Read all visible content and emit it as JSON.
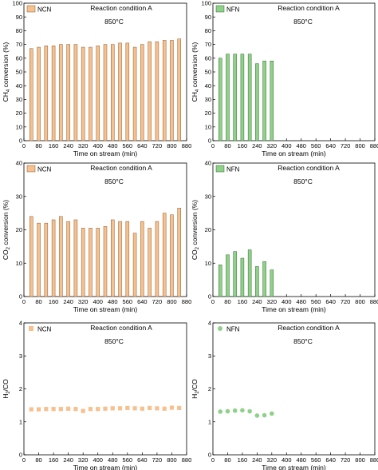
{
  "colors": {
    "ncn_fill": "#f6c08f",
    "ncn_stroke": "#8a5a2b",
    "nfn_fill": "#8fd08a",
    "nfn_stroke": "#2f6b2a"
  },
  "chart_data": [
    {
      "type": "bar",
      "legend": "NCN",
      "annotation_1": "Reaction condition A",
      "annotation_2": "850°C",
      "xlabel": "Time on stream (min)",
      "ylabel_main": "CH",
      "ylabel_sub": "4",
      "ylabel_rest": " conversion (%)",
      "xlim": [
        0,
        880
      ],
      "ylim": [
        0,
        100
      ],
      "xticks": [
        "0",
        "80",
        "160",
        "240",
        "320",
        "400",
        "480",
        "560",
        "640",
        "720",
        "800",
        "880"
      ],
      "yticks": [
        "0",
        "10",
        "20",
        "30",
        "40",
        "50",
        "60",
        "70",
        "80",
        "90",
        "100"
      ],
      "x": [
        40,
        80,
        120,
        160,
        200,
        240,
        280,
        320,
        360,
        400,
        440,
        480,
        520,
        560,
        600,
        640,
        680,
        720,
        760,
        800,
        840
      ],
      "values": [
        67,
        68,
        69,
        69,
        70,
        70,
        70,
        68,
        68,
        69,
        70,
        70,
        71,
        71,
        68,
        70,
        72,
        72,
        73,
        73,
        74
      ]
    },
    {
      "type": "bar",
      "legend": "NFN",
      "annotation_1": "Reaction condition A",
      "annotation_2": "850°C",
      "xlabel": "Time on stream (min)",
      "ylabel_main": "CH",
      "ylabel_sub": "4",
      "ylabel_rest": " conversion (%)",
      "xlim": [
        0,
        880
      ],
      "ylim": [
        0,
        100
      ],
      "xticks": [
        "0",
        "80",
        "160",
        "240",
        "320",
        "400",
        "480",
        "560",
        "640",
        "720",
        "800",
        "880"
      ],
      "yticks": [
        "0",
        "10",
        "20",
        "30",
        "40",
        "50",
        "60",
        "70",
        "80",
        "90",
        "100"
      ],
      "x": [
        40,
        80,
        120,
        160,
        200,
        240,
        280,
        320
      ],
      "values": [
        60,
        63,
        63,
        63,
        63,
        56,
        58,
        58
      ]
    },
    {
      "type": "bar",
      "legend": "NCN",
      "annotation_1": "Reaction condition A",
      "annotation_2": "850°C",
      "xlabel": "Time on stream (min)",
      "ylabel_main": "CO",
      "ylabel_sub": "2",
      "ylabel_rest": " conversion (%)",
      "xlim": [
        0,
        880
      ],
      "ylim": [
        0,
        40
      ],
      "xticks": [
        "0",
        "80",
        "160",
        "240",
        "320",
        "400",
        "480",
        "560",
        "640",
        "720",
        "800",
        "880"
      ],
      "yticks": [
        "0",
        "10",
        "20",
        "30",
        "40"
      ],
      "x": [
        40,
        80,
        120,
        160,
        200,
        240,
        280,
        320,
        360,
        400,
        440,
        480,
        520,
        560,
        600,
        640,
        680,
        720,
        760,
        800,
        840
      ],
      "values": [
        24,
        22,
        22,
        23,
        24,
        22.5,
        23,
        20.5,
        20.5,
        20.5,
        21,
        23,
        22.5,
        22.5,
        19,
        22.5,
        20.5,
        22.5,
        25,
        24.5,
        26.5
      ]
    },
    {
      "type": "bar",
      "legend": "NFN",
      "annotation_1": "Reaction condition A",
      "annotation_2": "850°C",
      "xlabel": "Time on stream (min)",
      "ylabel_main": "CO",
      "ylabel_sub": "2",
      "ylabel_rest": " conversion (%)",
      "xlim": [
        0,
        880
      ],
      "ylim": [
        0,
        40
      ],
      "xticks": [
        "0",
        "80",
        "160",
        "240",
        "320",
        "400",
        "480",
        "560",
        "640",
        "720",
        "800",
        "880"
      ],
      "yticks": [
        "0",
        "10",
        "20",
        "30",
        "40"
      ],
      "x": [
        40,
        80,
        120,
        160,
        200,
        240,
        280,
        320
      ],
      "values": [
        9.5,
        12.5,
        13.5,
        11.5,
        14,
        9,
        10.5,
        8
      ]
    },
    {
      "type": "scatter",
      "legend": "NCN",
      "annotation_1": "Reaction condition A",
      "annotation_2": "850°C",
      "xlabel": "Time on stream (min)",
      "ylabel_main": "H",
      "ylabel_sub": "2",
      "ylabel_rest": "/CO",
      "xlim": [
        0,
        880
      ],
      "ylim": [
        0,
        4
      ],
      "xticks": [
        "0",
        "80",
        "160",
        "240",
        "320",
        "400",
        "480",
        "560",
        "640",
        "720",
        "800",
        "880"
      ],
      "yticks": [
        "0",
        "1",
        "2",
        "3",
        "4"
      ],
      "x": [
        40,
        80,
        120,
        160,
        200,
        240,
        280,
        320,
        360,
        400,
        440,
        480,
        520,
        560,
        600,
        640,
        680,
        720,
        760,
        800,
        840
      ],
      "values": [
        1.38,
        1.38,
        1.39,
        1.39,
        1.39,
        1.4,
        1.39,
        1.33,
        1.39,
        1.39,
        1.4,
        1.41,
        1.41,
        1.42,
        1.41,
        1.4,
        1.42,
        1.41,
        1.4,
        1.43,
        1.42
      ]
    },
    {
      "type": "scatter",
      "legend": "NFN",
      "annotation_1": "Reaction condition A",
      "annotation_2": "850°C",
      "xlabel": "Time on stream (min)",
      "ylabel_main": "H",
      "ylabel_sub": "2",
      "ylabel_rest": "/CO",
      "xlim": [
        0,
        880
      ],
      "ylim": [
        0,
        4
      ],
      "xticks": [
        "0",
        "80",
        "160",
        "240",
        "320",
        "400",
        "480",
        "560",
        "640",
        "720",
        "800",
        "880"
      ],
      "yticks": [
        "0",
        "1",
        "2",
        "3",
        "4"
      ],
      "x": [
        40,
        80,
        120,
        160,
        200,
        240,
        280,
        320
      ],
      "values": [
        1.31,
        1.32,
        1.34,
        1.35,
        1.32,
        1.19,
        1.2,
        1.25
      ]
    }
  ]
}
